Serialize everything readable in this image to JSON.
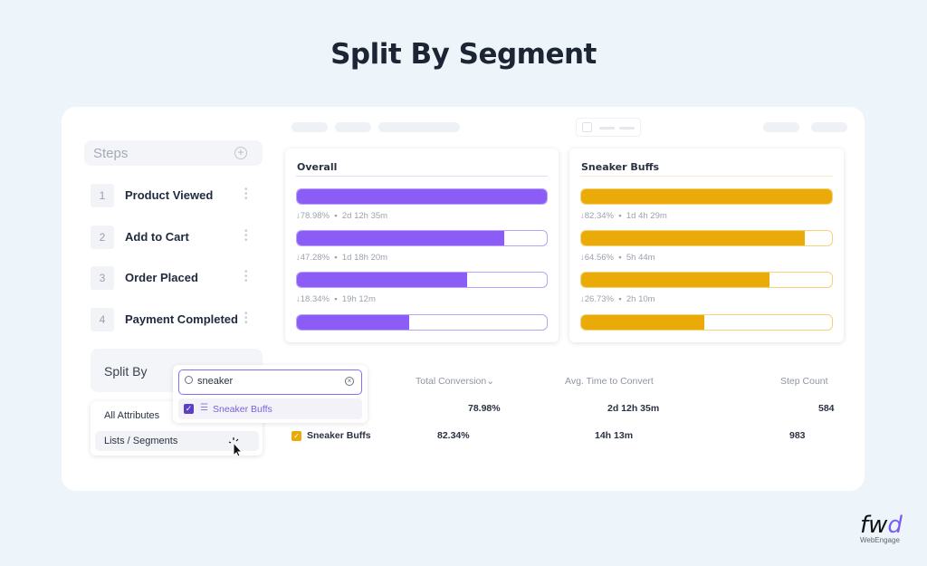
{
  "title": "Split By Segment",
  "steps": {
    "header": "Steps",
    "items": [
      {
        "num": "1",
        "label": "Product Viewed"
      },
      {
        "num": "2",
        "label": "Add to Cart"
      },
      {
        "num": "3",
        "label": "Order Placed"
      },
      {
        "num": "4",
        "label": "Payment Completed"
      }
    ]
  },
  "split_by": {
    "label": "Split By",
    "options": [
      "All Attributes",
      "Lists / Segments"
    ]
  },
  "search": {
    "value": "sneaker",
    "result": "Sneaker Buffs"
  },
  "funnels": [
    {
      "title": "Overall",
      "color": "#8b5cf6",
      "border": "#b9a3f7",
      "fills": [
        100,
        83,
        68,
        45
      ],
      "stats": [
        "↓78.98%  ▪  2d 12h 35m",
        "↓47.28%  ▪  1d 18h 20m",
        "↓18.34%  ▪  19h 12m"
      ]
    },
    {
      "title": "Sneaker Buffs",
      "color": "#eaaa08",
      "border": "#f3d37a",
      "fills": [
        100,
        89,
        75,
        49
      ],
      "stats": [
        "↓82.34%  ▪  1d 4h 29m",
        "↓64.56%  ▪  5h 44m",
        "↓26.73%  ▪  2h 10m"
      ]
    }
  ],
  "table": {
    "headers": [
      "Total Conversion⌄",
      "Avg. Time to Convert",
      "Step Count"
    ],
    "rows": [
      {
        "name": "",
        "conv": "78.98%",
        "time": "2d 12h  35m",
        "count": "584"
      },
      {
        "name": "Sneaker Buffs",
        "conv": "82.34%",
        "time": "14h 13m",
        "count": "983"
      }
    ]
  },
  "logo": {
    "text": "fwd",
    "sub": "WebEngage"
  }
}
